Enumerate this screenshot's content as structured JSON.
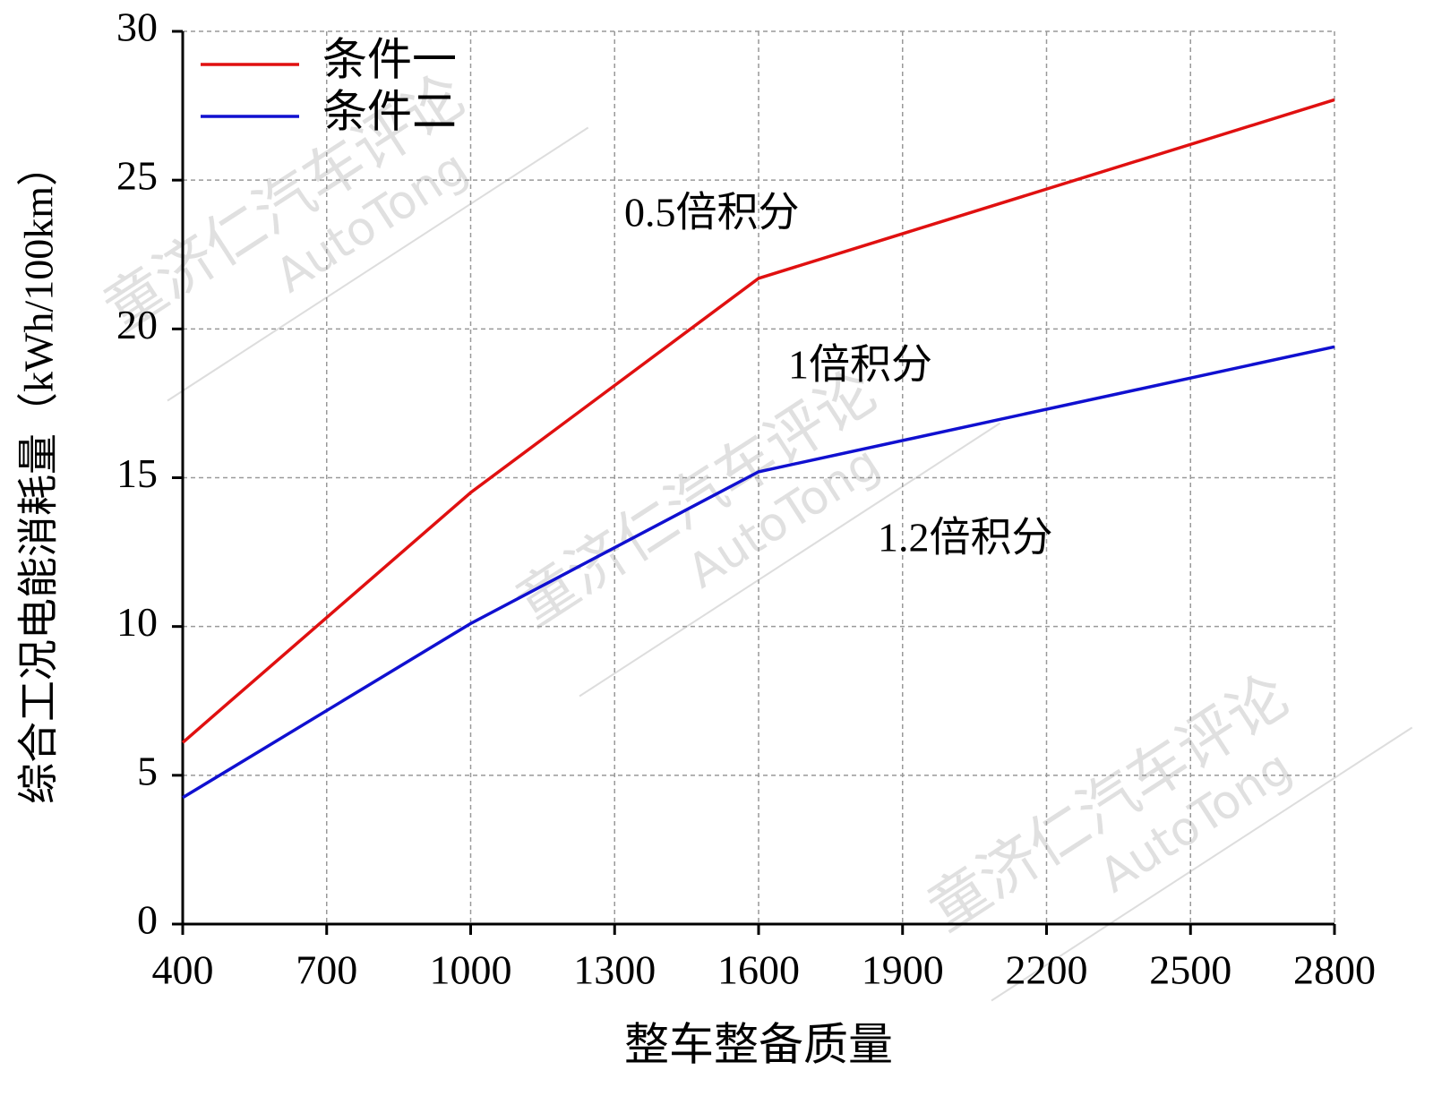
{
  "chart_data": {
    "type": "line",
    "x_label": "整车整备质量",
    "y_label": "综合工况电能消耗量（kWh/100km）",
    "x": [
      400,
      1000,
      1600,
      2800
    ],
    "series": [
      {
        "name": "条件一",
        "color": "#e01010",
        "values": [
          6.1,
          14.5,
          21.7,
          27.7
        ]
      },
      {
        "name": "条件二",
        "color": "#1010d0",
        "values": [
          4.25,
          10.1,
          15.2,
          19.4
        ]
      }
    ],
    "xlim": [
      400,
      2800
    ],
    "xticks": [
      400,
      700,
      1000,
      1300,
      1600,
      1900,
      2200,
      2500,
      2800
    ],
    "ylim": [
      0,
      30
    ],
    "yticks": [
      0,
      5,
      10,
      15,
      20,
      25,
      30
    ],
    "grid": true,
    "legend": "top-left",
    "annotations": [
      "0.5倍积分",
      "1倍积分",
      "1.2倍积分"
    ],
    "watermark": [
      "童济仁汽车评论",
      "AutoTong"
    ]
  }
}
